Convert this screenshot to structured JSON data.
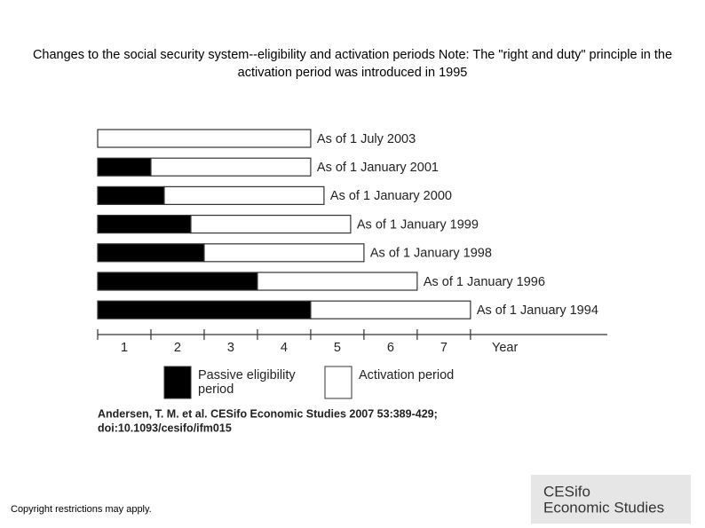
{
  "chart_data": {
    "type": "stacked-bar-horizontal",
    "title": "Changes to the social security system--eligibility and activation periods Note: The \"right and duty\" principle in the activation period was introduced in 1995",
    "categories": [
      "As of 1 July 2003",
      "As of 1 January 2001",
      "As of 1 January 2000",
      "As of 1 January 1999",
      "As of 1 January 1998",
      "As of 1 January 1996",
      "As of 1 January 1994"
    ],
    "series": [
      {
        "name": "Passive eligibility period",
        "color": "#000000",
        "values": [
          0,
          1,
          1.25,
          1.75,
          2,
          3,
          4
        ]
      },
      {
        "name": "Activation period",
        "color": "#ffffff",
        "values": [
          4,
          3,
          3,
          3,
          3,
          3,
          3
        ]
      }
    ],
    "xlim": [
      0,
      9.57
    ],
    "xticks": [
      0,
      1,
      2,
      3,
      4,
      5,
      6,
      7
    ],
    "year_labels": [
      "1",
      "2",
      "3",
      "4",
      "5",
      "6",
      "7"
    ],
    "xlabel": "Year"
  },
  "citation": [
    "Andersen, T. M. et al. CESifo Economic Studies 2007 53:389-429;",
    "doi:10.1093/cesifo/ifm015"
  ],
  "copyright": "Copyright restrictions may apply.",
  "logo": [
    "CESifo",
    "Economic Studies"
  ]
}
